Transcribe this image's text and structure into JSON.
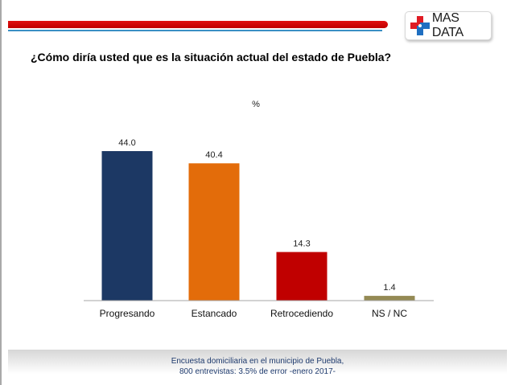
{
  "header": {
    "logo_text": "MAS DATA",
    "logo_icon": "medical-cross-icon",
    "colors": {
      "red_bar": "#c00000",
      "blue_line": "#3a8fc4"
    }
  },
  "question": "¿Cómo diría usted que es la situación actual del estado de Puebla?",
  "footer": {
    "line1": "Encuesta domiciliaria en el municipio de Puebla,",
    "line2": "800 entrevistas: 3.5% de error -enero 2017-"
  },
  "chart_data": {
    "type": "bar",
    "title": "¿Cómo diría usted que es la situación actual del estado de Puebla?",
    "subtitle": "%",
    "xlabel": "",
    "ylabel": "",
    "categories": [
      "Progresando",
      "Estancado",
      "Retrocediendo",
      "NS / NC"
    ],
    "values": [
      44.0,
      40.4,
      14.3,
      1.4
    ],
    "value_labels": [
      "44.0",
      "40.4",
      "14.3",
      "1.4"
    ],
    "colors": [
      "#1c3864",
      "#e36c0a",
      "#c00000",
      "#948a54"
    ],
    "ylim": [
      0,
      44.0
    ],
    "grid": false,
    "legend": "none"
  }
}
